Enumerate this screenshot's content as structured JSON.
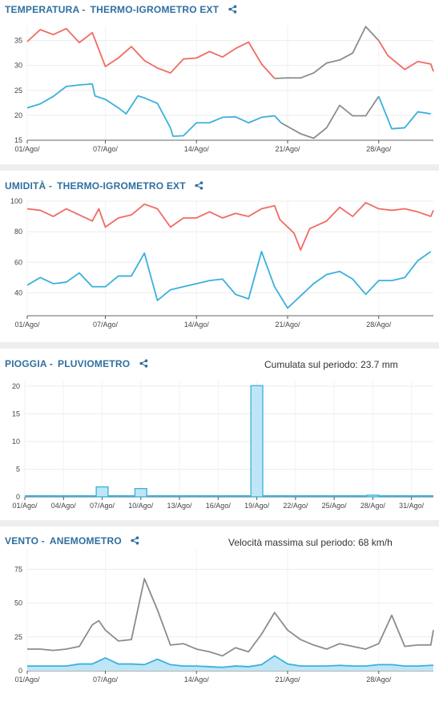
{
  "panels": {
    "temp": {
      "metric": "TEMPERATURA -",
      "device": "THERMO-IGROMETRO EXT"
    },
    "hum": {
      "metric": "UMIDITÀ -",
      "device": "THERMO-IGROMETRO EXT"
    },
    "rain": {
      "metric": "PIOGGIA -",
      "device": "PLUVIOMETRO",
      "stat": "Cumulata sul periodo: 23.7 mm"
    },
    "wind": {
      "metric": "VENTO -",
      "device": "ANEMOMETRO",
      "stat": "Velocità massima sul periodo: 68 km/h"
    }
  },
  "colors": {
    "max": "#f06b63",
    "min": "#3ab0dd",
    "gray": "#8c8c8c",
    "fill": "#bfe6f6",
    "title": "#2f6f9f"
  },
  "chart_data": [
    {
      "id": "temp",
      "type": "line",
      "xlim": [
        1,
        32.2
      ],
      "ylim": [
        15,
        38
      ],
      "yticks": [
        15,
        20,
        25,
        30,
        35
      ],
      "xticks": [
        {
          "x": 1,
          "label": "01/Ago/"
        },
        {
          "x": 7,
          "label": "07/Ago/"
        },
        {
          "x": 14,
          "label": "14/Ago/"
        },
        {
          "x": 21,
          "label": "21/Ago/"
        },
        {
          "x": 28,
          "label": "28/Ago/"
        }
      ],
      "series": [
        {
          "color": "max",
          "points": [
            [
              1,
              34.8
            ],
            [
              2,
              37.2
            ],
            [
              3,
              36.2
            ],
            [
              4,
              37.4
            ],
            [
              5,
              34.6
            ],
            [
              6,
              36.6
            ],
            [
              7,
              29.8
            ],
            [
              8,
              31.5
            ],
            [
              9,
              33.8
            ],
            [
              10,
              31
            ],
            [
              11,
              29.5
            ],
            [
              12,
              28.5
            ],
            [
              13,
              31.3
            ],
            [
              14,
              31.5
            ],
            [
              15,
              32.8
            ],
            [
              16,
              31.7
            ],
            [
              17,
              33.4
            ],
            [
              18,
              34.7
            ],
            [
              19,
              30.3
            ],
            [
              20,
              27.4
            ]
          ]
        },
        {
          "color": "gray",
          "points": [
            [
              20,
              27.4
            ],
            [
              21,
              27.5
            ],
            [
              22,
              27.5
            ],
            [
              23,
              28.5
            ],
            [
              24,
              30.5
            ],
            [
              25,
              31.1
            ],
            [
              26,
              32.5
            ],
            [
              27,
              37.8
            ],
            [
              28,
              35
            ]
          ]
        },
        {
          "color": "max",
          "points": [
            [
              28,
              35
            ],
            [
              28.7,
              32
            ],
            [
              30,
              29.2
            ],
            [
              31,
              30.8
            ],
            [
              32,
              30.3
            ],
            [
              32.2,
              28.8
            ]
          ]
        },
        {
          "color": "min",
          "points": [
            [
              1,
              21.5
            ],
            [
              2,
              22.3
            ],
            [
              3,
              23.8
            ],
            [
              4,
              25.8
            ],
            [
              5,
              26.1
            ],
            [
              6,
              26.3
            ],
            [
              6.2,
              23.9
            ],
            [
              7,
              23.2
            ],
            [
              8,
              21.5
            ],
            [
              8.6,
              20.3
            ],
            [
              9.5,
              23.9
            ],
            [
              10,
              23.5
            ],
            [
              11,
              22.4
            ],
            [
              12,
              17.5
            ],
            [
              12.2,
              15.8
            ],
            [
              13,
              15.9
            ],
            [
              14,
              18.5
            ],
            [
              15,
              18.5
            ],
            [
              16,
              19.6
            ],
            [
              17,
              19.7
            ],
            [
              18,
              18.5
            ],
            [
              19,
              19.6
            ],
            [
              20,
              19.9
            ],
            [
              20.5,
              18.5
            ]
          ]
        },
        {
          "color": "gray",
          "points": [
            [
              20.5,
              18.5
            ],
            [
              22,
              16.3
            ],
            [
              23,
              15.4
            ],
            [
              24,
              17.5
            ],
            [
              25,
              22
            ],
            [
              26,
              19.9
            ],
            [
              27,
              19.9
            ],
            [
              28,
              23.8
            ]
          ]
        },
        {
          "color": "min",
          "points": [
            [
              28,
              23.8
            ],
            [
              29,
              17.3
            ],
            [
              30,
              17.5
            ],
            [
              31,
              20.7
            ],
            [
              32,
              20.3
            ]
          ]
        }
      ]
    },
    {
      "id": "hum",
      "type": "line",
      "xlim": [
        1,
        32.2
      ],
      "ylim": [
        25,
        100
      ],
      "yticks": [
        40,
        60,
        80,
        100
      ],
      "xticks": [
        {
          "x": 1,
          "label": "01/Ago/"
        },
        {
          "x": 7,
          "label": "07/Ago/"
        },
        {
          "x": 14,
          "label": "14/Ago/"
        },
        {
          "x": 21,
          "label": "21/Ago/"
        },
        {
          "x": 28,
          "label": "28/Ago/"
        }
      ],
      "series": [
        {
          "color": "max",
          "points": [
            [
              1,
              95
            ],
            [
              2,
              94
            ],
            [
              3,
              90
            ],
            [
              4,
              95
            ],
            [
              5,
              91
            ],
            [
              6,
              87
            ],
            [
              6.5,
              95
            ],
            [
              7,
              83
            ],
            [
              8,
              89
            ],
            [
              9,
              91
            ],
            [
              10,
              98
            ],
            [
              11,
              95
            ],
            [
              12,
              83
            ],
            [
              13,
              89
            ],
            [
              14,
              89
            ],
            [
              15,
              93
            ],
            [
              16,
              89
            ],
            [
              17,
              92
            ],
            [
              18,
              90
            ],
            [
              19,
              95
            ],
            [
              20,
              97
            ],
            [
              20.4,
              88
            ],
            [
              21.5,
              79
            ],
            [
              22,
              68
            ],
            [
              22.7,
              82
            ],
            [
              24,
              87
            ],
            [
              25,
              96
            ],
            [
              26,
              90
            ],
            [
              27,
              99
            ],
            [
              28,
              95
            ],
            [
              29,
              94
            ],
            [
              30,
              95
            ],
            [
              31,
              93
            ],
            [
              32,
              90
            ],
            [
              32.2,
              94
            ]
          ]
        },
        {
          "color": "min",
          "points": [
            [
              1,
              45
            ],
            [
              2,
              50
            ],
            [
              3,
              46
            ],
            [
              4,
              47
            ],
            [
              5,
              53
            ],
            [
              6,
              44
            ],
            [
              7,
              44
            ],
            [
              8,
              51
            ],
            [
              9,
              51
            ],
            [
              10,
              66
            ],
            [
              11,
              35
            ],
            [
              12,
              42
            ],
            [
              13,
              44
            ],
            [
              14,
              46
            ],
            [
              15,
              48
            ],
            [
              16,
              49
            ],
            [
              17,
              39
            ],
            [
              18,
              36
            ],
            [
              19,
              67
            ],
            [
              20,
              44
            ],
            [
              21,
              30
            ],
            [
              22,
              38
            ],
            [
              23,
              46
            ],
            [
              24,
              52
            ],
            [
              25,
              54
            ],
            [
              26,
              49
            ],
            [
              27,
              39
            ],
            [
              28,
              48
            ],
            [
              29,
              48
            ],
            [
              30,
              50
            ],
            [
              31,
              61
            ],
            [
              32,
              67
            ]
          ]
        }
      ]
    },
    {
      "id": "rain",
      "type": "bar",
      "xlim": [
        1,
        32.7
      ],
      "ylim": [
        0,
        21
      ],
      "yticks": [
        0,
        5,
        10,
        15,
        20
      ],
      "xticks": [
        {
          "x": 1,
          "label": "01/Ago/"
        },
        {
          "x": 4,
          "label": "04/Ago/"
        },
        {
          "x": 7,
          "label": "07/Ago/"
        },
        {
          "x": 10,
          "label": "10/Ago/"
        },
        {
          "x": 13,
          "label": "13/Ago/"
        },
        {
          "x": 16,
          "label": "16/Ago/"
        },
        {
          "x": 19,
          "label": "19/Ago/"
        },
        {
          "x": 22,
          "label": "22/Ago/"
        },
        {
          "x": 25,
          "label": "25/Ago/"
        },
        {
          "x": 28,
          "label": "28/Ago/"
        },
        {
          "x": 31,
          "label": "31/Ago/"
        }
      ],
      "bars": [
        {
          "x": 7,
          "value": 1.8
        },
        {
          "x": 10,
          "value": 1.5
        },
        {
          "x": 19,
          "value": 20.1
        },
        {
          "x": 28,
          "value": 0.3
        }
      ]
    },
    {
      "id": "wind",
      "type": "line",
      "xlim": [
        1,
        32.2
      ],
      "ylim": [
        0,
        90
      ],
      "yticks": [
        0,
        25,
        50,
        75
      ],
      "xticks": [
        {
          "x": 1,
          "label": "01/Ago/"
        },
        {
          "x": 7,
          "label": "07/Ago/"
        },
        {
          "x": 14,
          "label": "14/Ago/"
        },
        {
          "x": 21,
          "label": "21/Ago/"
        },
        {
          "x": 28,
          "label": "28/Ago/"
        }
      ],
      "series": [
        {
          "color": "gray",
          "points": [
            [
              1,
              16
            ],
            [
              2,
              16
            ],
            [
              3,
              15
            ],
            [
              4,
              16
            ],
            [
              5,
              18
            ],
            [
              6,
              34
            ],
            [
              6.5,
              37
            ],
            [
              7,
              30
            ],
            [
              8,
              22
            ],
            [
              9,
              23
            ],
            [
              10,
              68
            ],
            [
              11,
              45
            ],
            [
              12,
              19
            ],
            [
              13,
              20
            ],
            [
              14,
              16
            ],
            [
              15,
              14
            ],
            [
              16,
              11
            ],
            [
              17,
              17
            ],
            [
              18,
              14
            ],
            [
              19,
              27
            ],
            [
              20,
              43
            ],
            [
              21,
              30
            ],
            [
              22,
              23
            ],
            [
              23,
              19
            ],
            [
              24,
              16
            ],
            [
              25,
              20
            ],
            [
              26,
              18
            ],
            [
              27,
              16
            ],
            [
              28,
              20
            ],
            [
              29,
              41
            ],
            [
              30,
              18
            ],
            [
              31,
              19
            ],
            [
              32,
              19
            ],
            [
              32.2,
              30
            ]
          ]
        }
      ],
      "areas": [
        {
          "color": "min",
          "points": [
            [
              1,
              3.5
            ],
            [
              2,
              3.5
            ],
            [
              3,
              3.5
            ],
            [
              4,
              3.5
            ],
            [
              5,
              5
            ],
            [
              6,
              5
            ],
            [
              7,
              9.5
            ],
            [
              8,
              5
            ],
            [
              9,
              5
            ],
            [
              10,
              4.5
            ],
            [
              11,
              8.5
            ],
            [
              12,
              4.5
            ],
            [
              13,
              3.5
            ],
            [
              14,
              3.5
            ],
            [
              15,
              3
            ],
            [
              16,
              2.5
            ],
            [
              17,
              3.5
            ],
            [
              18,
              3
            ],
            [
              19,
              4.5
            ],
            [
              20,
              11
            ],
            [
              21,
              5
            ],
            [
              22,
              3.5
            ],
            [
              23,
              3.5
            ],
            [
              24,
              3.5
            ],
            [
              25,
              4
            ],
            [
              26,
              3.5
            ],
            [
              27,
              3.5
            ],
            [
              28,
              4.5
            ],
            [
              29,
              4.5
            ],
            [
              30,
              3.5
            ],
            [
              31,
              3.5
            ],
            [
              32,
              4
            ],
            [
              32.2,
              4
            ]
          ]
        }
      ]
    }
  ]
}
